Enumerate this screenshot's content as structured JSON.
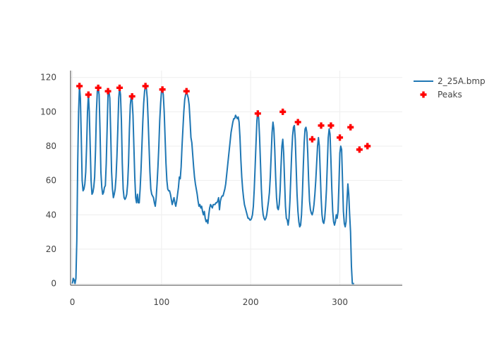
{
  "chart_data": {
    "type": "line",
    "title": "",
    "xlabel": "",
    "ylabel": "",
    "xlim": [
      -2,
      370
    ],
    "ylim": [
      -1,
      124
    ],
    "x_ticks": [
      0,
      100,
      200,
      300
    ],
    "y_ticks": [
      0,
      20,
      40,
      60,
      80,
      100,
      120
    ],
    "grid": true,
    "legend_position": "top-right",
    "series": [
      {
        "name": "2_25A.bmp",
        "kind": "line",
        "color": "#1f77b4",
        "points": [
          [
            0,
            0
          ],
          [
            1,
            3
          ],
          [
            2,
            2
          ],
          [
            3,
            0
          ],
          [
            4,
            3
          ],
          [
            5,
            25
          ],
          [
            6,
            70
          ],
          [
            7,
            100
          ],
          [
            8,
            115
          ],
          [
            9,
            108
          ],
          [
            10,
            85
          ],
          [
            11,
            60
          ],
          [
            12,
            54
          ],
          [
            13,
            55
          ],
          [
            14,
            58
          ],
          [
            15,
            65
          ],
          [
            16,
            80
          ],
          [
            17,
            100
          ],
          [
            18,
            110
          ],
          [
            19,
            100
          ],
          [
            20,
            80
          ],
          [
            21,
            60
          ],
          [
            22,
            52
          ],
          [
            23,
            53
          ],
          [
            24,
            56
          ],
          [
            25,
            62
          ],
          [
            26,
            78
          ],
          [
            27,
            100
          ],
          [
            28,
            112
          ],
          [
            29,
            114
          ],
          [
            30,
            110
          ],
          [
            31,
            90
          ],
          [
            32,
            65
          ],
          [
            33,
            56
          ],
          [
            34,
            52
          ],
          [
            35,
            53
          ],
          [
            36,
            56
          ],
          [
            37,
            57
          ],
          [
            38,
            70
          ],
          [
            39,
            90
          ],
          [
            40,
            110
          ],
          [
            41,
            112
          ],
          [
            42,
            108
          ],
          [
            43,
            88
          ],
          [
            44,
            65
          ],
          [
            45,
            55
          ],
          [
            46,
            50
          ],
          [
            47,
            52
          ],
          [
            48,
            55
          ],
          [
            49,
            62
          ],
          [
            50,
            74
          ],
          [
            51,
            90
          ],
          [
            52,
            108
          ],
          [
            53,
            114
          ],
          [
            54,
            110
          ],
          [
            55,
            95
          ],
          [
            56,
            70
          ],
          [
            57,
            55
          ],
          [
            58,
            50
          ],
          [
            59,
            49
          ],
          [
            60,
            50
          ],
          [
            61,
            52
          ],
          [
            62,
            58
          ],
          [
            63,
            70
          ],
          [
            64,
            90
          ],
          [
            65,
            104
          ],
          [
            66,
            109
          ],
          [
            67,
            107
          ],
          [
            68,
            98
          ],
          [
            69,
            80
          ],
          [
            70,
            62
          ],
          [
            71,
            50
          ],
          [
            72,
            47
          ],
          [
            73,
            52
          ],
          [
            74,
            47
          ],
          [
            75,
            47
          ],
          [
            76,
            55
          ],
          [
            77,
            66
          ],
          [
            78,
            80
          ],
          [
            79,
            94
          ],
          [
            80,
            105
          ],
          [
            81,
            112
          ],
          [
            82,
            115
          ],
          [
            83,
            114
          ],
          [
            84,
            108
          ],
          [
            85,
            95
          ],
          [
            86,
            80
          ],
          [
            87,
            65
          ],
          [
            88,
            55
          ],
          [
            89,
            52
          ],
          [
            90,
            51
          ],
          [
            91,
            50
          ],
          [
            92,
            47
          ],
          [
            93,
            45
          ],
          [
            94,
            50
          ],
          [
            95,
            58
          ],
          [
            96,
            68
          ],
          [
            97,
            80
          ],
          [
            98,
            95
          ],
          [
            99,
            105
          ],
          [
            100,
            112
          ],
          [
            101,
            113
          ],
          [
            102,
            110
          ],
          [
            103,
            100
          ],
          [
            104,
            85
          ],
          [
            105,
            70
          ],
          [
            106,
            60
          ],
          [
            107,
            55
          ],
          [
            108,
            54
          ],
          [
            109,
            54
          ],
          [
            110,
            52
          ],
          [
            111,
            49
          ],
          [
            112,
            46
          ],
          [
            113,
            48
          ],
          [
            114,
            50
          ],
          [
            115,
            47
          ],
          [
            116,
            45
          ],
          [
            117,
            48
          ],
          [
            118,
            52
          ],
          [
            119,
            56
          ],
          [
            120,
            62
          ],
          [
            121,
            61
          ],
          [
            122,
            68
          ],
          [
            123,
            80
          ],
          [
            124,
            90
          ],
          [
            125,
            100
          ],
          [
            126,
            107
          ],
          [
            127,
            110
          ],
          [
            128,
            111
          ],
          [
            129,
            110
          ],
          [
            130,
            108
          ],
          [
            131,
            104
          ],
          [
            132,
            95
          ],
          [
            133,
            85
          ],
          [
            134,
            82
          ],
          [
            135,
            75
          ],
          [
            136,
            68
          ],
          [
            137,
            62
          ],
          [
            138,
            58
          ],
          [
            139,
            55
          ],
          [
            140,
            52
          ],
          [
            141,
            48
          ],
          [
            142,
            45
          ],
          [
            143,
            46
          ],
          [
            144,
            44
          ],
          [
            145,
            45
          ],
          [
            146,
            42
          ],
          [
            147,
            40
          ],
          [
            148,
            42
          ],
          [
            149,
            38
          ],
          [
            150,
            36
          ],
          [
            151,
            37
          ],
          [
            152,
            35
          ],
          [
            153,
            40
          ],
          [
            154,
            44
          ],
          [
            155,
            46
          ],
          [
            156,
            45
          ],
          [
            157,
            44
          ],
          [
            158,
            46
          ],
          [
            159,
            46
          ],
          [
            160,
            46
          ],
          [
            161,
            47
          ],
          [
            162,
            47
          ],
          [
            163,
            48
          ],
          [
            164,
            50
          ],
          [
            165,
            43
          ],
          [
            166,
            48
          ],
          [
            167,
            50
          ],
          [
            168,
            51
          ],
          [
            169,
            51
          ],
          [
            170,
            53
          ],
          [
            171,
            55
          ],
          [
            172,
            58
          ],
          [
            173,
            63
          ],
          [
            174,
            68
          ],
          [
            175,
            73
          ],
          [
            176,
            78
          ],
          [
            177,
            83
          ],
          [
            178,
            88
          ],
          [
            179,
            91
          ],
          [
            180,
            94
          ],
          [
            181,
            96
          ],
          [
            182,
            96
          ],
          [
            183,
            98
          ],
          [
            184,
            97
          ],
          [
            185,
            96
          ],
          [
            186,
            97
          ],
          [
            187,
            94
          ],
          [
            188,
            85
          ],
          [
            189,
            72
          ],
          [
            190,
            62
          ],
          [
            191,
            55
          ],
          [
            192,
            50
          ],
          [
            193,
            46
          ],
          [
            194,
            44
          ],
          [
            195,
            42
          ],
          [
            196,
            40
          ],
          [
            197,
            38
          ],
          [
            198,
            38
          ],
          [
            199,
            37
          ],
          [
            200,
            37
          ],
          [
            201,
            38
          ],
          [
            202,
            40
          ],
          [
            203,
            45
          ],
          [
            204,
            55
          ],
          [
            205,
            68
          ],
          [
            206,
            82
          ],
          [
            207,
            95
          ],
          [
            208,
            100
          ],
          [
            209,
            96
          ],
          [
            210,
            85
          ],
          [
            211,
            70
          ],
          [
            212,
            55
          ],
          [
            213,
            45
          ],
          [
            214,
            40
          ],
          [
            215,
            38
          ],
          [
            216,
            37
          ],
          [
            217,
            38
          ],
          [
            218,
            40
          ],
          [
            219,
            44
          ],
          [
            220,
            48
          ],
          [
            221,
            53
          ],
          [
            222,
            62
          ],
          [
            223,
            75
          ],
          [
            224,
            88
          ],
          [
            225,
            94
          ],
          [
            226,
            90
          ],
          [
            227,
            78
          ],
          [
            228,
            62
          ],
          [
            229,
            50
          ],
          [
            230,
            44
          ],
          [
            231,
            43
          ],
          [
            232,
            46
          ],
          [
            233,
            54
          ],
          [
            234,
            68
          ],
          [
            235,
            80
          ],
          [
            236,
            84
          ],
          [
            237,
            76
          ],
          [
            238,
            60
          ],
          [
            239,
            45
          ],
          [
            240,
            38
          ],
          [
            241,
            37
          ],
          [
            242,
            34
          ],
          [
            243,
            38
          ],
          [
            244,
            48
          ],
          [
            245,
            62
          ],
          [
            246,
            76
          ],
          [
            247,
            86
          ],
          [
            248,
            91
          ],
          [
            249,
            92
          ],
          [
            250,
            84
          ],
          [
            251,
            68
          ],
          [
            252,
            52
          ],
          [
            253,
            42
          ],
          [
            254,
            36
          ],
          [
            255,
            33
          ],
          [
            256,
            34
          ],
          [
            257,
            40
          ],
          [
            258,
            52
          ],
          [
            259,
            68
          ],
          [
            260,
            82
          ],
          [
            261,
            90
          ],
          [
            262,
            91
          ],
          [
            263,
            88
          ],
          [
            264,
            76
          ],
          [
            265,
            60
          ],
          [
            266,
            48
          ],
          [
            267,
            43
          ],
          [
            268,
            41
          ],
          [
            269,
            40
          ],
          [
            270,
            42
          ],
          [
            271,
            46
          ],
          [
            272,
            52
          ],
          [
            273,
            60
          ],
          [
            274,
            70
          ],
          [
            275,
            80
          ],
          [
            276,
            85
          ],
          [
            277,
            80
          ],
          [
            278,
            65
          ],
          [
            279,
            50
          ],
          [
            280,
            40
          ],
          [
            281,
            36
          ],
          [
            282,
            35
          ],
          [
            283,
            38
          ],
          [
            284,
            45
          ],
          [
            285,
            55
          ],
          [
            286,
            70
          ],
          [
            287,
            85
          ],
          [
            288,
            90
          ],
          [
            289,
            87
          ],
          [
            290,
            72
          ],
          [
            291,
            55
          ],
          [
            292,
            42
          ],
          [
            293,
            36
          ],
          [
            294,
            34
          ],
          [
            295,
            36
          ],
          [
            296,
            40
          ],
          [
            297,
            38
          ],
          [
            298,
            42
          ],
          [
            299,
            58
          ],
          [
            300,
            76
          ],
          [
            301,
            80
          ],
          [
            302,
            78
          ],
          [
            303,
            60
          ],
          [
            304,
            42
          ],
          [
            305,
            35
          ],
          [
            306,
            33
          ],
          [
            307,
            36
          ],
          [
            308,
            48
          ],
          [
            309,
            58
          ],
          [
            310,
            52
          ],
          [
            311,
            40
          ],
          [
            312,
            30
          ],
          [
            313,
            10
          ],
          [
            314,
            0
          ],
          [
            315,
            0
          ],
          [
            316,
            0
          ]
        ]
      },
      {
        "name": "Peaks",
        "kind": "markers",
        "color": "#ff0000",
        "points": [
          [
            8,
            115
          ],
          [
            18,
            110
          ],
          [
            29,
            114
          ],
          [
            40,
            112
          ],
          [
            53,
            114
          ],
          [
            67,
            109
          ],
          [
            82,
            115
          ],
          [
            101,
            113
          ],
          [
            128,
            112
          ],
          [
            208,
            99
          ],
          [
            236,
            100
          ],
          [
            253,
            94
          ],
          [
            269,
            84
          ],
          [
            279,
            92
          ],
          [
            290,
            92
          ],
          [
            300,
            85
          ],
          [
            312,
            91
          ],
          [
            322,
            78
          ],
          [
            331,
            80
          ]
        ]
      }
    ]
  }
}
